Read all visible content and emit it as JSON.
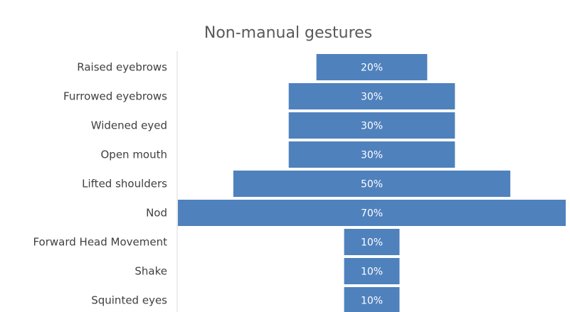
{
  "chart_data": {
    "type": "bar",
    "orientation": "horizontal",
    "style": "funnel",
    "title": "Non-manual gestures",
    "categories": [
      "Raised eyebrows",
      "Furrowed eyebrows",
      "Widened eyed",
      "Open mouth",
      "Lifted shoulders",
      "Nod",
      "Forward Head Movement",
      "Shake",
      "Squinted eyes"
    ],
    "values": [
      20,
      30,
      30,
      30,
      50,
      70,
      10,
      10,
      10
    ],
    "data_labels": [
      "20%",
      "30%",
      "30%",
      "30%",
      "50%",
      "70%",
      "10%",
      "10%",
      "10%"
    ],
    "unit": "%",
    "xlim": [
      0,
      70
    ],
    "xlabel": "",
    "ylabel": "",
    "grid": false,
    "legend": "none",
    "bar_color": "#4f81bd"
  }
}
